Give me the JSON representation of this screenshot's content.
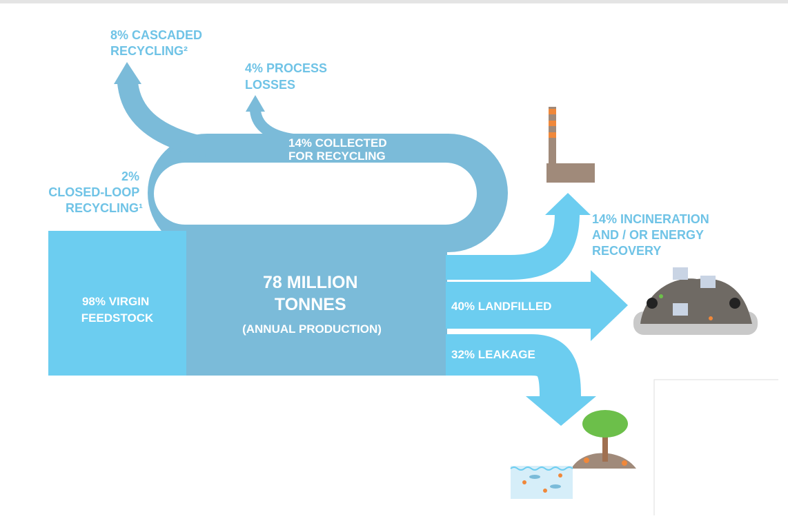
{
  "nodes": [
    {
      "lines": [
        "8% CASCADED",
        "RECYCLING²"
      ]
    },
    {
      "lines": [
        "4% PROCESS",
        "LOSSES"
      ]
    },
    {
      "lines": [
        "14% COLLECTED",
        "FOR RECYCLING"
      ]
    },
    {
      "lines": [
        "2%",
        "CLOSED-LOOP",
        "RECYCLING¹"
      ]
    },
    {
      "lines": [
        "98% VIRGIN",
        "FEEDSTOCK"
      ]
    },
    {
      "lines": [
        "78 MILLION",
        "TONNES",
        "(ANNUAL PRODUCTION)"
      ]
    },
    {
      "lines": [
        "14% INCINERATION",
        "AND / OR ENERGY",
        "RECOVERY"
      ]
    },
    {
      "lines": [
        "40% LANDFILLED"
      ]
    },
    {
      "lines": [
        "32% LEAKAGE"
      ]
    }
  ]
}
